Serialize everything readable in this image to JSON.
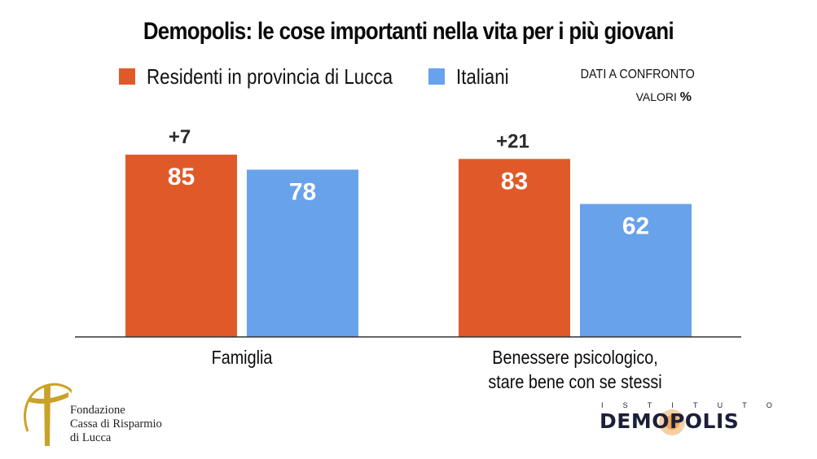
{
  "chart_data": {
    "type": "bar",
    "title": "Demopolis: le cose importanti nella vita per i più giovani",
    "categories": [
      [
        "Famiglia"
      ],
      [
        "Benessere psicologico,",
        "stare bene con se stessi"
      ]
    ],
    "series": [
      {
        "name": "Residenti in provincia di Lucca",
        "color": "#E05A29",
        "values": [
          85,
          83
        ]
      },
      {
        "name": "Italiani",
        "color": "#68A2EA",
        "values": [
          78,
          62
        ]
      }
    ],
    "differences": [
      "+7",
      "+21"
    ],
    "xlabel": "",
    "ylabel": "",
    "ylim": [
      0,
      100
    ],
    "grid": false,
    "legend_position": "top",
    "notes": {
      "line1": "DATI A CONFRONTO",
      "line2_prefix": "VALORI ",
      "line2_symbol": "%"
    }
  },
  "logos": {
    "fondazione": {
      "lines": [
        "Fondazione",
        "Cassa di Risparmio",
        "di Lucca"
      ],
      "color": "#C9A227"
    },
    "demopolis": {
      "tagline_letters": [
        "I",
        "S",
        "T",
        "I",
        "T",
        "U",
        "T",
        "O"
      ],
      "wordmark": "DEMOPOLIS",
      "color": "#1C1F3A",
      "accent": "#E8953A"
    }
  }
}
